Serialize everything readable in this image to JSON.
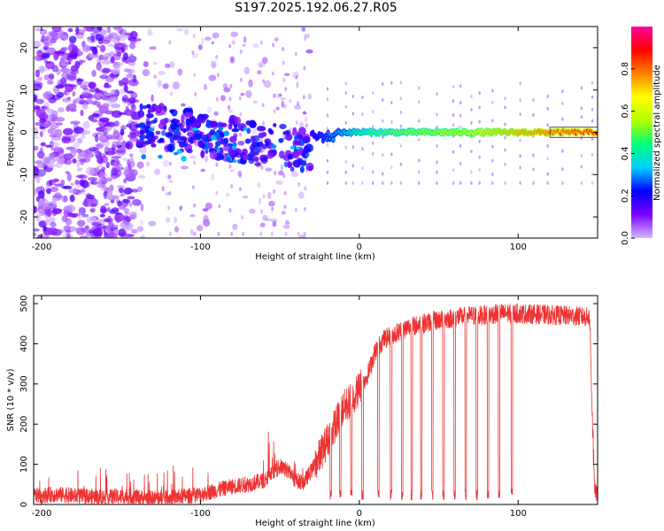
{
  "figure": {
    "title": "S197.2025.192.06.27.R05"
  },
  "chart_data": [
    {
      "type": "heatmap",
      "xlabel": "Height of straight line (km)",
      "ylabel": "Frequency (Hz)",
      "xlim": [
        -205,
        150
      ],
      "ylim": [
        -25,
        25
      ],
      "xticks": [
        -200,
        -100,
        0,
        100
      ],
      "yticks": [
        -20,
        -10,
        0,
        10,
        20
      ],
      "grid": false,
      "colorbar": {
        "label": "Normalized spectral amplitude",
        "range": [
          0,
          1
        ],
        "ticks": [
          "0.0",
          "0.2",
          "0.4",
          "0.6",
          "0.8"
        ],
        "colormap": [
          "#d6b8ff",
          "#7b00ff",
          "#0000ff",
          "#00cfff",
          "#00ff7a",
          "#b4ff00",
          "#ffff00",
          "#ff8000",
          "#ff0000",
          "#ff00a0"
        ]
      },
      "regions": [
        {
          "x_range": [
            -205,
            -140
          ],
          "freq_range": [
            -25,
            25
          ],
          "level": "scattered noise, 0.0-0.15"
        },
        {
          "x_range": [
            -140,
            -30
          ],
          "freq_range": [
            -15,
            8
          ],
          "level": "wandering blobs, 0.1-0.3"
        },
        {
          "x_range": [
            -30,
            150
          ],
          "freq_range": [
            -2,
            2
          ],
          "level": "band near 0 Hz, 0.5-0.95"
        }
      ]
    },
    {
      "type": "line",
      "xlabel": "Height of straight line (km)",
      "ylabel": "SNR (10 * v/v)",
      "xlim": [
        -205,
        150
      ],
      "ylim": [
        0,
        520
      ],
      "xticks": [
        -200,
        -100,
        0,
        100
      ],
      "yticks": [
        0,
        100,
        200,
        300,
        400,
        500
      ],
      "grid": false,
      "series": [
        {
          "color": "#ee3333",
          "x": [
            -205,
            -190,
            -175,
            -160,
            -145,
            -130,
            -115,
            -100,
            -90,
            -80,
            -70,
            -60,
            -55,
            -50,
            -45,
            -40,
            -35,
            -30,
            -25,
            -20,
            -15,
            -10,
            -5,
            0,
            5,
            10,
            15,
            20,
            25,
            30,
            35,
            40,
            45,
            50,
            55,
            60,
            65,
            70,
            75,
            80,
            85,
            90,
            95,
            100,
            110,
            120,
            130,
            140,
            145,
            148,
            150
          ],
          "values": [
            22,
            25,
            20,
            18,
            20,
            15,
            18,
            25,
            35,
            45,
            50,
            60,
            75,
            95,
            85,
            60,
            55,
            85,
            120,
            160,
            200,
            240,
            260,
            290,
            320,
            380,
            410,
            420,
            430,
            440,
            445,
            450,
            455,
            460,
            462,
            465,
            468,
            470,
            470,
            472,
            474,
            475,
            476,
            475,
            474,
            472,
            470,
            468,
            465,
            40,
            20
          ]
        }
      ],
      "dropouts_x": [
        -18,
        -12,
        -5,
        2,
        12,
        20,
        27,
        33,
        39,
        46,
        53,
        60,
        67,
        74,
        81,
        88,
        96
      ]
    }
  ]
}
